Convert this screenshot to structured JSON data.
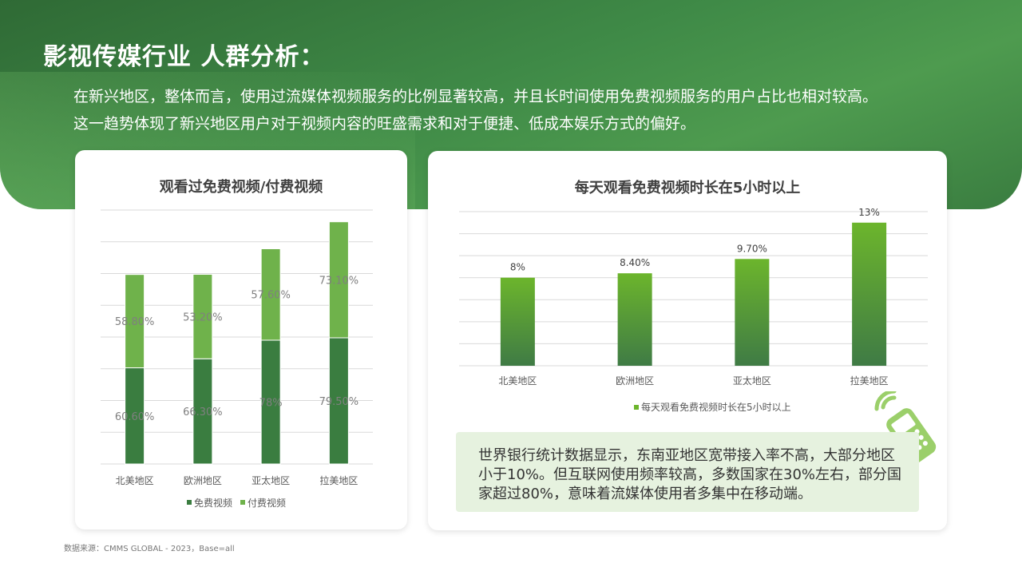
{
  "title": "影视传媒行业 人群分析：",
  "intro": [
    "在新兴地区，整体而言，使用过流媒体视频服务的比例显著较高，并且长时间使用免费视频服务的用户占比也相对较高。",
    "这一趋势体现了新兴地区用户对于视频内容的旺盛需求和对于便捷、低成本娱乐方式的偏好。"
  ],
  "note": "世界银行统计数据显示，东南亚地区宽带接入率不高，大部分地区小于10%。但互联网使用频率较高，多数国家在30%左右，部分国家超过80%，意味着流媒体使用者多集中在移动端。",
  "source": "数据来源：CMMS GLOBAL - 2023，Base=all",
  "colors": {
    "header": "#3a7d40",
    "free": "#3a7d40",
    "paid": "#6fb24b",
    "bar_top": "#6cb52c",
    "bar_bottom": "#3f7b45"
  },
  "chart_data": [
    {
      "type": "bar",
      "stacked": true,
      "title": "观看过免费视频/付费视频",
      "categories": [
        "北美地区",
        "欧洲地区",
        "亚太地区",
        "拉美地区"
      ],
      "series": [
        {
          "name": "免费视频",
          "values": [
            60.6,
            66.3,
            78.0,
            79.5
          ],
          "labels": [
            "60.60%",
            "66.30%",
            "78%",
            "79.50%"
          ]
        },
        {
          "name": "付费视频",
          "values": [
            58.8,
            53.2,
            57.6,
            73.1
          ],
          "labels": [
            "58.80%",
            "53.20%",
            "57.60%",
            "73.10%"
          ]
        }
      ],
      "ylim": [
        0,
        160
      ],
      "grid": true,
      "legend": "bottom"
    },
    {
      "type": "bar",
      "title": "每天观看免费视频时长在5小时以上",
      "categories": [
        "北美地区",
        "欧洲地区",
        "亚太地区",
        "拉美地区"
      ],
      "series": [
        {
          "name": "每天观看免费视频时长在5小时以上",
          "values": [
            8,
            8.4,
            9.7,
            13
          ],
          "labels": [
            "8%",
            "8.40%",
            "9.70%",
            "13%"
          ]
        }
      ],
      "ylim": [
        0,
        14
      ],
      "grid": true,
      "legend": "bottom"
    }
  ]
}
